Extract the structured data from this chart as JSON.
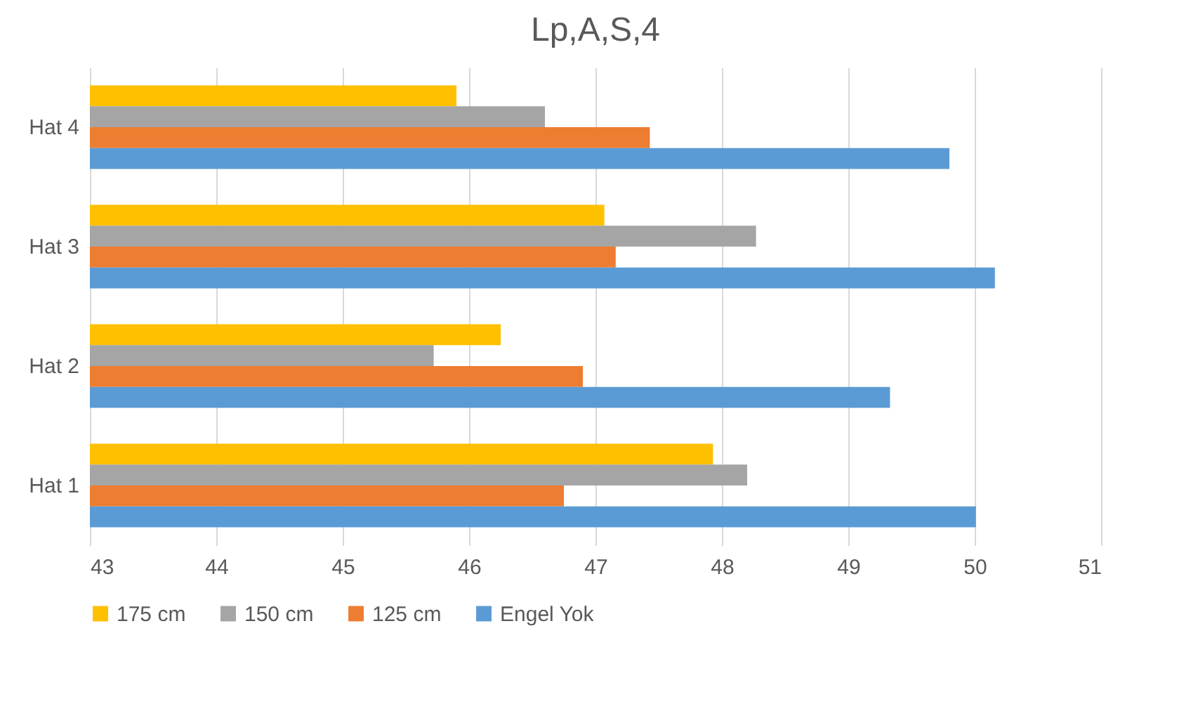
{
  "chart_data": {
    "type": "bar",
    "orientation": "horizontal",
    "title": "Lp,A,S,4",
    "categories": [
      "Hat 4",
      "Hat 3",
      "Hat 2",
      "Hat 1"
    ],
    "series": [
      {
        "name": "175 cm",
        "color": "#ffc000",
        "values": [
          45.9,
          47.07,
          46.25,
          47.93
        ]
      },
      {
        "name": "150 cm",
        "color": "#a5a5a5",
        "values": [
          46.6,
          48.27,
          45.72,
          48.2
        ]
      },
      {
        "name": "125 cm",
        "color": "#ed7d31",
        "values": [
          47.43,
          47.16,
          46.9,
          46.75
        ]
      },
      {
        "name": "Engel Yok",
        "color": "#5b9bd5",
        "values": [
          49.8,
          50.16,
          49.33,
          50.01
        ]
      }
    ],
    "xlim": [
      43,
      51
    ],
    "xticks": [
      43,
      44,
      45,
      46,
      47,
      48,
      49,
      50,
      51
    ],
    "grid": "x",
    "legend": "bottom"
  }
}
